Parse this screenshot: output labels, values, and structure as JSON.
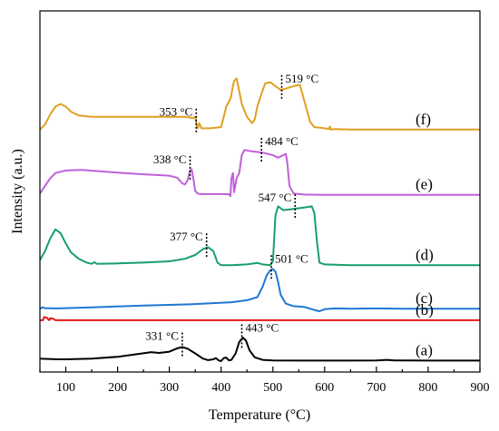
{
  "chart_data": {
    "type": "line",
    "xlabel": "Temperature (°C)",
    "ylabel": "Intensity (a.u.)",
    "xlim": [
      50,
      900
    ],
    "xticks": [
      100,
      200,
      300,
      400,
      500,
      600,
      700,
      800,
      900
    ],
    "yticks": [],
    "grid": false,
    "legend": "none",
    "series": [
      {
        "name": "(a)",
        "color": "#000000",
        "offset": 0,
        "scale": 1,
        "points": [
          [
            50,
            0.1
          ],
          [
            60,
            0.09
          ],
          [
            80,
            0.075
          ],
          [
            100,
            0.07
          ],
          [
            150,
            0.1
          ],
          [
            200,
            0.17
          ],
          [
            240,
            0.28
          ],
          [
            265,
            0.35
          ],
          [
            280,
            0.32
          ],
          [
            300,
            0.37
          ],
          [
            315,
            0.5
          ],
          [
            325,
            0.55
          ],
          [
            335,
            0.49
          ],
          [
            350,
            0.3
          ],
          [
            365,
            0.1
          ],
          [
            375,
            0.04
          ],
          [
            385,
            0.07
          ],
          [
            390,
            0.12
          ],
          [
            395,
            0.03
          ],
          [
            400,
            0.0
          ],
          [
            405,
            0.12
          ],
          [
            410,
            0.14
          ],
          [
            415,
            0.03
          ],
          [
            420,
            0.05
          ],
          [
            428,
            0.3
          ],
          [
            435,
            0.75
          ],
          [
            442,
            0.92
          ],
          [
            448,
            0.8
          ],
          [
            455,
            0.42
          ],
          [
            465,
            0.15
          ],
          [
            480,
            0.05
          ],
          [
            500,
            0.03
          ],
          [
            550,
            0.02
          ],
          [
            600,
            0.02
          ],
          [
            650,
            0.02
          ],
          [
            700,
            0.03
          ],
          [
            720,
            0.05
          ],
          [
            735,
            0.03
          ],
          [
            760,
            0.03
          ],
          [
            800,
            0.02
          ],
          [
            850,
            0.02
          ],
          [
            900,
            0.02
          ]
        ]
      },
      {
        "name": "(b)",
        "color": "#e41a1c",
        "offset": 1.6,
        "scale": 1,
        "points": [
          [
            50,
            0.0
          ],
          [
            56,
            0.0
          ],
          [
            58,
            0.12
          ],
          [
            63,
            0.1
          ],
          [
            68,
            0.0
          ],
          [
            70,
            0.08
          ],
          [
            75,
            0.06
          ],
          [
            80,
            0.0
          ],
          [
            90,
            0.0
          ],
          [
            100,
            0.0
          ],
          [
            200,
            0.0
          ],
          [
            300,
            0.0
          ],
          [
            400,
            0.0
          ],
          [
            500,
            0.0
          ],
          [
            600,
            0.0
          ],
          [
            700,
            0.0
          ],
          [
            800,
            0.0
          ],
          [
            900,
            0.0
          ]
        ]
      },
      {
        "name": "(c)",
        "color": "#1f77d4",
        "offset": 2.0,
        "scale": 1,
        "points": [
          [
            50,
            0.05
          ],
          [
            55,
            0.1
          ],
          [
            60,
            0.07
          ],
          [
            80,
            0.06
          ],
          [
            100,
            0.07
          ],
          [
            150,
            0.1
          ],
          [
            200,
            0.14
          ],
          [
            250,
            0.17
          ],
          [
            300,
            0.2
          ],
          [
            340,
            0.22
          ],
          [
            380,
            0.26
          ],
          [
            420,
            0.3
          ],
          [
            450,
            0.38
          ],
          [
            470,
            0.5
          ],
          [
            480,
            0.9
          ],
          [
            488,
            1.35
          ],
          [
            495,
            1.55
          ],
          [
            500,
            1.6
          ],
          [
            505,
            1.5
          ],
          [
            510,
            1.1
          ],
          [
            515,
            0.6
          ],
          [
            525,
            0.25
          ],
          [
            540,
            0.15
          ],
          [
            560,
            0.12
          ],
          [
            580,
            0.0
          ],
          [
            590,
            -0.05
          ],
          [
            600,
            0.03
          ],
          [
            620,
            0.06
          ],
          [
            650,
            0.05
          ],
          [
            700,
            0.06
          ],
          [
            750,
            0.05
          ],
          [
            800,
            0.05
          ],
          [
            850,
            0.05
          ],
          [
            900,
            0.05
          ]
        ]
      },
      {
        "name": "(d)",
        "color": "#16a06a",
        "offset": 3.7,
        "scale": 1,
        "points": [
          [
            50,
            0.25
          ],
          [
            60,
            0.6
          ],
          [
            70,
            1.1
          ],
          [
            80,
            1.45
          ],
          [
            90,
            1.3
          ],
          [
            100,
            0.9
          ],
          [
            110,
            0.55
          ],
          [
            125,
            0.3
          ],
          [
            140,
            0.15
          ],
          [
            150,
            0.1
          ],
          [
            155,
            0.17
          ],
          [
            160,
            0.1
          ],
          [
            200,
            0.12
          ],
          [
            250,
            0.15
          ],
          [
            300,
            0.2
          ],
          [
            330,
            0.3
          ],
          [
            350,
            0.45
          ],
          [
            365,
            0.68
          ],
          [
            375,
            0.75
          ],
          [
            385,
            0.6
          ],
          [
            393,
            0.15
          ],
          [
            400,
            0.05
          ],
          [
            420,
            0.05
          ],
          [
            450,
            0.08
          ],
          [
            470,
            0.14
          ],
          [
            480,
            0.08
          ],
          [
            495,
            0.05
          ],
          [
            500,
            0.2
          ],
          [
            505,
            2.0
          ],
          [
            510,
            2.35
          ],
          [
            520,
            2.2
          ],
          [
            540,
            2.25
          ],
          [
            560,
            2.3
          ],
          [
            575,
            2.35
          ],
          [
            580,
            2.1
          ],
          [
            585,
            1.0
          ],
          [
            590,
            0.15
          ],
          [
            600,
            0.08
          ],
          [
            650,
            0.05
          ],
          [
            700,
            0.05
          ],
          [
            750,
            0.05
          ],
          [
            800,
            0.05
          ],
          [
            850,
            0.05
          ],
          [
            900,
            0.05
          ]
        ]
      },
      {
        "name": "(e)",
        "color": "#c060d8",
        "offset": 6.45,
        "scale": 1,
        "points": [
          [
            50,
            0.1
          ],
          [
            60,
            0.4
          ],
          [
            70,
            0.7
          ],
          [
            80,
            0.9
          ],
          [
            100,
            1.0
          ],
          [
            130,
            1.02
          ],
          [
            160,
            0.98
          ],
          [
            200,
            0.92
          ],
          [
            250,
            0.85
          ],
          [
            280,
            0.82
          ],
          [
            300,
            0.8
          ],
          [
            315,
            0.72
          ],
          [
            325,
            0.5
          ],
          [
            330,
            0.45
          ],
          [
            335,
            0.6
          ],
          [
            340,
            1.0
          ],
          [
            343,
            1.05
          ],
          [
            347,
            0.6
          ],
          [
            350,
            0.2
          ],
          [
            355,
            0.1
          ],
          [
            360,
            0.08
          ],
          [
            400,
            0.08
          ],
          [
            415,
            0.07
          ],
          [
            418,
            0.0
          ],
          [
            420,
            0.7
          ],
          [
            423,
            0.9
          ],
          [
            425,
            0.15
          ],
          [
            430,
            0.7
          ],
          [
            435,
            0.9
          ],
          [
            440,
            1.6
          ],
          [
            445,
            1.8
          ],
          [
            460,
            1.75
          ],
          [
            480,
            1.7
          ],
          [
            500,
            1.6
          ],
          [
            510,
            1.5
          ],
          [
            520,
            1.6
          ],
          [
            525,
            1.65
          ],
          [
            528,
            1.3
          ],
          [
            532,
            0.4
          ],
          [
            540,
            0.1
          ],
          [
            560,
            0.06
          ],
          [
            600,
            0.05
          ],
          [
            700,
            0.05
          ],
          [
            800,
            0.05
          ],
          [
            900,
            0.05
          ]
        ]
      },
      {
        "name": "(f)",
        "color": "#e0a022",
        "offset": 9.05,
        "scale": 1,
        "points": [
          [
            50,
            0.0
          ],
          [
            60,
            0.2
          ],
          [
            70,
            0.6
          ],
          [
            80,
            0.9
          ],
          [
            90,
            1.0
          ],
          [
            100,
            0.9
          ],
          [
            110,
            0.7
          ],
          [
            125,
            0.55
          ],
          [
            150,
            0.5
          ],
          [
            200,
            0.5
          ],
          [
            250,
            0.5
          ],
          [
            300,
            0.5
          ],
          [
            330,
            0.5
          ],
          [
            345,
            0.45
          ],
          [
            350,
            0.5
          ],
          [
            352,
            0.25
          ],
          [
            355,
            0.05
          ],
          [
            358,
            0.25
          ],
          [
            362,
            0.05
          ],
          [
            380,
            0.05
          ],
          [
            400,
            0.1
          ],
          [
            405,
            0.5
          ],
          [
            410,
            0.9
          ],
          [
            418,
            1.2
          ],
          [
            425,
            1.9
          ],
          [
            430,
            2.0
          ],
          [
            435,
            1.5
          ],
          [
            440,
            1.0
          ],
          [
            450,
            0.5
          ],
          [
            460,
            0.25
          ],
          [
            465,
            0.4
          ],
          [
            470,
            0.9
          ],
          [
            478,
            1.4
          ],
          [
            485,
            1.8
          ],
          [
            495,
            1.85
          ],
          [
            505,
            1.7
          ],
          [
            515,
            1.55
          ],
          [
            525,
            1.6
          ],
          [
            540,
            1.7
          ],
          [
            552,
            1.75
          ],
          [
            557,
            1.4
          ],
          [
            565,
            0.8
          ],
          [
            572,
            0.3
          ],
          [
            580,
            0.1
          ],
          [
            600,
            0.05
          ],
          [
            608,
            0.02
          ],
          [
            610,
            0.12
          ],
          [
            612,
            0.0
          ],
          [
            620,
            0.02
          ],
          [
            650,
            0.0
          ],
          [
            700,
            0.0
          ],
          [
            750,
            0.0
          ],
          [
            800,
            0.0
          ],
          [
            850,
            0.0
          ],
          [
            900,
            0.0
          ]
        ]
      }
    ],
    "peak_annotations": [
      {
        "label": "331 °C",
        "series": "(a)",
        "x": 325,
        "text_side": "left"
      },
      {
        "label": "443 °C",
        "series": "(a)",
        "x": 440,
        "text_side": "right"
      },
      {
        "label": "501 °C",
        "series": "(c)",
        "x": 497,
        "text_side": "right"
      },
      {
        "label": "377 °C",
        "series": "(d)",
        "x": 372,
        "text_side": "left"
      },
      {
        "label": "547 °C",
        "series": "(d)",
        "x": 543,
        "text_side": "left"
      },
      {
        "label": "338 °C",
        "series": "(e)",
        "x": 340,
        "text_side": "left"
      },
      {
        "label": "484 °C",
        "series": "(e)",
        "x": 478,
        "text_side": "right"
      },
      {
        "label": "353 °C",
        "series": "(f)",
        "x": 352,
        "text_side": "left"
      },
      {
        "label": "519 °C",
        "series": "(f)",
        "x": 517,
        "text_side": "right"
      }
    ]
  }
}
